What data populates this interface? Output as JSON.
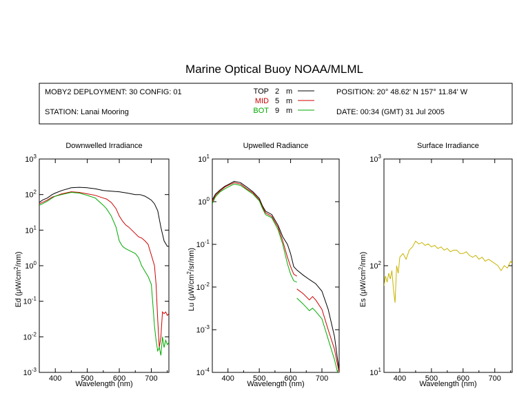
{
  "title": "Marine Optical Buoy NOAA/MLML",
  "info": {
    "deployment": "MOBY2 DEPLOYMENT: 30 CONFIG: 01",
    "station": "STATION: Lanai Mooring",
    "position": "POSITION: 20° 48.62' N   157° 11.84' W",
    "date": "DATE: 00:34 (GMT) 31 Jul 2005",
    "legend": [
      {
        "name": "TOP",
        "depth": "2",
        "unit": "m",
        "color": "#000000"
      },
      {
        "name": "MID",
        "depth": "5",
        "unit": "m",
        "color": "#cc0000"
      },
      {
        "name": "BOT",
        "depth": "9",
        "unit": "m",
        "color": "#00aa00"
      }
    ]
  },
  "colors": {
    "top": "#000000",
    "mid": "#cc0000",
    "bot": "#00aa00",
    "surface": "#c8b400"
  },
  "chart_data": [
    {
      "type": "line",
      "title": "Downwelled Irradiance",
      "xlabel": "Wavelength (nm)",
      "ylabel_prefix": "Ed  (",
      "ylabel_unit": "μW/cm",
      "ylabel_exp": "2",
      "ylabel_suffix": "/nm)",
      "xlim": [
        350,
        755
      ],
      "ylim": [
        0.001,
        1000
      ],
      "yscale": "log",
      "xticks": [
        400,
        500,
        600,
        700
      ],
      "yticks_exp": [
        -3,
        -2,
        -1,
        0,
        1,
        2,
        3
      ],
      "series": [
        {
          "key": "top",
          "x": [
            350,
            360,
            375,
            390,
            400,
            420,
            450,
            475,
            500,
            525,
            550,
            575,
            600,
            625,
            650,
            665,
            680,
            690,
            700,
            710,
            720,
            730,
            740,
            750,
            755
          ],
          "y": [
            60,
            70,
            80,
            100,
            110,
            130,
            155,
            160,
            155,
            145,
            130,
            125,
            120,
            110,
            100,
            100,
            90,
            80,
            70,
            55,
            35,
            12,
            5,
            3.5,
            3.5
          ]
        },
        {
          "key": "mid",
          "x": [
            350,
            360,
            375,
            390,
            400,
            420,
            450,
            475,
            500,
            525,
            550,
            560,
            575,
            590,
            600,
            610,
            620,
            630,
            650,
            660,
            670,
            680,
            690,
            700,
            710,
            715,
            720,
            725,
            730,
            735,
            740,
            745,
            750,
            755
          ],
          "y": [
            55,
            60,
            70,
            85,
            90,
            105,
            120,
            115,
            105,
            95,
            80,
            75,
            60,
            40,
            25,
            18,
            14,
            12,
            8,
            6.5,
            6,
            5,
            4,
            2,
            1,
            0.3,
            0.03,
            0.005,
            0.01,
            0.05,
            0.045,
            0.05,
            0.04,
            0.045
          ]
        },
        {
          "key": "bot",
          "x": [
            350,
            360,
            375,
            390,
            400,
            420,
            450,
            475,
            500,
            525,
            550,
            560,
            575,
            590,
            600,
            610,
            620,
            630,
            650,
            660,
            670,
            680,
            690,
            700,
            705,
            710,
            715,
            720,
            725,
            730,
            735,
            740,
            745,
            750,
            755
          ],
          "y": [
            50,
            55,
            65,
            80,
            90,
            100,
            115,
            110,
            95,
            80,
            50,
            40,
            25,
            12,
            5,
            3.5,
            3,
            2.7,
            2.2,
            1.7,
            1,
            0.7,
            0.5,
            0.3,
            0.08,
            0.02,
            0.008,
            0.004,
            0.005,
            0.003,
            0.01,
            0.005,
            0.008,
            0.006,
            0.007
          ]
        }
      ]
    },
    {
      "type": "line",
      "title": "Upwelled Radiance",
      "xlabel": "Wavelength (nm)",
      "ylabel_prefix": "Lu  (",
      "ylabel_unit": "μW/cm",
      "ylabel_exp": "2",
      "ylabel_suffix": "/sr/nm)",
      "xlim": [
        350,
        755
      ],
      "ylim": [
        0.0001,
        10
      ],
      "yscale": "log",
      "xticks": [
        400,
        500,
        600,
        700
      ],
      "yticks_exp": [
        -4,
        -3,
        -2,
        -1,
        0,
        1
      ],
      "series": [
        {
          "key": "top",
          "x": [
            350,
            360,
            375,
            390,
            400,
            420,
            440,
            460,
            480,
            500,
            510,
            520,
            540,
            560,
            575,
            590,
            600,
            610,
            620,
            640,
            660,
            680,
            700,
            720,
            740,
            750,
            755
          ],
          "y": [
            1.1,
            1.5,
            1.9,
            2.3,
            2.5,
            3.0,
            2.8,
            2.2,
            1.7,
            1.2,
            0.8,
            0.6,
            0.5,
            0.28,
            0.15,
            0.1,
            0.06,
            0.03,
            0.025,
            0.019,
            0.015,
            0.012,
            0.008,
            0.003,
            0.0007,
            0.0002,
            0.00012
          ]
        },
        {
          "key": "mid",
          "x": [
            350,
            360,
            375,
            390,
            400,
            420,
            440,
            460,
            480,
            500,
            510,
            520,
            540,
            560,
            575,
            590,
            600,
            610,
            620
          ],
          "y": [
            1.0,
            1.4,
            1.8,
            2.2,
            2.4,
            2.8,
            2.6,
            2.0,
            1.6,
            1.1,
            0.75,
            0.55,
            0.45,
            0.25,
            0.12,
            0.05,
            0.03,
            0.02,
            0.018
          ]
        },
        {
          "key": "bot",
          "x": [
            350,
            360,
            375,
            390,
            400,
            420,
            440,
            460,
            480,
            500,
            510,
            520,
            540,
            560,
            575,
            590,
            600,
            610,
            620
          ],
          "y": [
            0.9,
            1.3,
            1.7,
            2.0,
            2.2,
            2.6,
            2.4,
            1.9,
            1.5,
            1.05,
            0.7,
            0.5,
            0.42,
            0.22,
            0.1,
            0.035,
            0.02,
            0.014,
            0.013
          ]
        },
        {
          "key": "mid",
          "x": [
            620,
            640,
            660,
            670,
            680,
            700,
            720,
            740,
            750,
            755
          ],
          "y": [
            0.009,
            0.007,
            0.005,
            0.006,
            0.005,
            0.003,
            0.001,
            0.00035,
            0.00015,
            0.0001
          ]
        },
        {
          "key": "bot",
          "x": [
            620,
            640,
            660,
            670,
            680,
            700,
            720,
            740,
            750,
            755
          ],
          "y": [
            0.0055,
            0.004,
            0.0028,
            0.0032,
            0.0027,
            0.0018,
            0.0006,
            0.0002,
            0.0001,
            0.0001
          ]
        }
      ]
    },
    {
      "type": "line",
      "title": "Surface Irradiance",
      "xlabel": "Wavelength (nm)",
      "ylabel_prefix": "Es  (",
      "ylabel_unit": "μW/cm",
      "ylabel_exp": "2",
      "ylabel_suffix": "/nm)",
      "xlim": [
        350,
        755
      ],
      "ylim": [
        10,
        1000
      ],
      "yscale": "log",
      "xticks": [
        400,
        500,
        600,
        700
      ],
      "yticks_exp": [
        1,
        2,
        3
      ],
      "series": [
        {
          "key": "surface",
          "x": [
            350,
            355,
            360,
            365,
            370,
            375,
            380,
            385,
            390,
            395,
            400,
            410,
            420,
            430,
            440,
            450,
            460,
            470,
            480,
            490,
            500,
            510,
            520,
            530,
            540,
            550,
            560,
            570,
            580,
            590,
            600,
            610,
            620,
            630,
            640,
            650,
            660,
            670,
            680,
            690,
            700,
            710,
            720,
            730,
            740,
            750,
            755
          ],
          "y": [
            65,
            80,
            70,
            85,
            75,
            90,
            60,
            45,
            100,
            85,
            120,
            130,
            115,
            140,
            150,
            170,
            160,
            165,
            155,
            160,
            150,
            155,
            145,
            150,
            140,
            145,
            135,
            140,
            140,
            130,
            130,
            135,
            125,
            120,
            125,
            115,
            120,
            110,
            115,
            110,
            105,
            100,
            90,
            100,
            95,
            110,
            105
          ]
        }
      ]
    }
  ]
}
